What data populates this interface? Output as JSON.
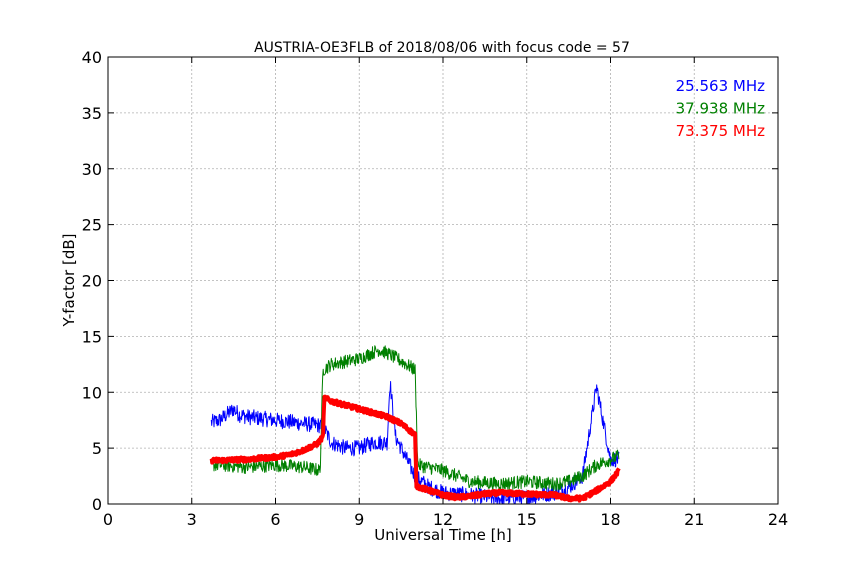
{
  "chart_data": {
    "type": "line",
    "title": "AUSTRIA-OE3FLB of 2018/08/06 with focus code = 57",
    "xlabel": "Universal Time [h]",
    "ylabel": "Y-factor [dB]",
    "xlim": [
      0,
      24
    ],
    "ylim": [
      0,
      40
    ],
    "xticks": [
      0,
      3,
      6,
      9,
      12,
      15,
      18,
      21,
      24
    ],
    "yticks": [
      0,
      5,
      10,
      15,
      20,
      25,
      30,
      35,
      40
    ],
    "grid": true,
    "legend_placement": "top-right",
    "series": [
      {
        "name": "25.563 MHz",
        "color": "#0000ff",
        "x": [
          3.7,
          4.0,
          4.5,
          4.7,
          5.0,
          6.0,
          7.0,
          7.7,
          8.0,
          8.5,
          9.0,
          9.5,
          10.0,
          10.1,
          10.3,
          11.0,
          11.5,
          12.0,
          13.0,
          14.0,
          15.0,
          16.0,
          16.5,
          17.0,
          17.5,
          18.0,
          18.3
        ],
        "y": [
          7.3,
          7.5,
          8.5,
          8.0,
          7.8,
          7.5,
          7.2,
          7.0,
          5.5,
          5.0,
          5.0,
          5.5,
          5.5,
          11.0,
          6.0,
          2.5,
          1.5,
          1.0,
          0.8,
          0.5,
          0.6,
          1.0,
          1.5,
          2.5,
          10.5,
          4.0,
          4.0
        ],
        "noise": 0.7
      },
      {
        "name": "37.938 MHz",
        "color": "#008000",
        "x": [
          3.7,
          4.0,
          5.0,
          6.0,
          7.0,
          7.6,
          7.7,
          8.0,
          9.0,
          9.7,
          10.0,
          10.5,
          11.0,
          11.1,
          12.0,
          13.0,
          14.0,
          15.0,
          16.0,
          16.5,
          17.0,
          17.5,
          18.0,
          18.3
        ],
        "y": [
          3.5,
          3.5,
          3.3,
          3.5,
          3.3,
          3.0,
          12.0,
          12.5,
          13.0,
          13.8,
          13.5,
          12.8,
          12.0,
          3.5,
          3.0,
          2.0,
          1.8,
          2.0,
          1.8,
          2.0,
          2.5,
          3.5,
          4.0,
          4.3
        ],
        "noise": 0.6
      },
      {
        "name": "73.375 MHz",
        "color": "#ff0000",
        "x": [
          3.7,
          4.0,
          5.0,
          6.0,
          6.5,
          7.0,
          7.5,
          7.7,
          7.75,
          8.0,
          9.0,
          10.0,
          10.5,
          11.0,
          11.05,
          12.0,
          12.5,
          13.0,
          13.5,
          14.0,
          15.0,
          16.0,
          16.5,
          17.0,
          17.5,
          18.0,
          18.3
        ],
        "y": [
          3.9,
          3.9,
          4.0,
          4.2,
          4.4,
          4.8,
          5.4,
          6.0,
          9.5,
          9.2,
          8.5,
          7.8,
          7.2,
          6.2,
          1.6,
          0.8,
          0.6,
          0.7,
          0.9,
          1.0,
          0.9,
          0.8,
          0.5,
          0.5,
          1.2,
          2.0,
          3.0
        ],
        "noise": 0.2
      }
    ]
  }
}
